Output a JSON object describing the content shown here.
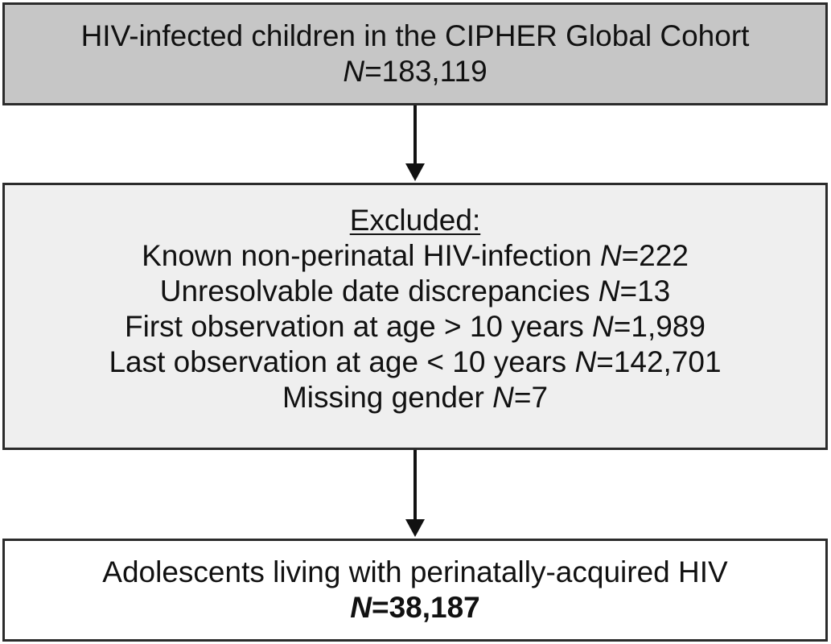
{
  "source_box": {
    "title": "HIV-infected children in the CIPHER Global Cohort",
    "n_label": "N",
    "n_value": "=183,119"
  },
  "excluded_box": {
    "heading": "Excluded:",
    "items": [
      {
        "text": "Known non-perinatal HIV-infection ",
        "n_label": "N",
        "n_value": "=222"
      },
      {
        "text": "Unresolvable date discrepancies ",
        "n_label": "N",
        "n_value": "=13"
      },
      {
        "text": "First observation at age > 10 years ",
        "n_label": "N",
        "n_value": "=1,989"
      },
      {
        "text": "Last observation at age < 10 years ",
        "n_label": "N",
        "n_value": "=142,701"
      },
      {
        "text": "Missing gender ",
        "n_label": "N",
        "n_value": "=7"
      }
    ]
  },
  "result_box": {
    "title": "Adolescents living with perinatally-acquired HIV",
    "n_label": "N",
    "n_value": "=38,187"
  },
  "colors": {
    "source_fill": "#c6c6c6",
    "excluded_fill": "#efefef",
    "result_fill": "#ffffff",
    "border": "#2b2b2b"
  }
}
